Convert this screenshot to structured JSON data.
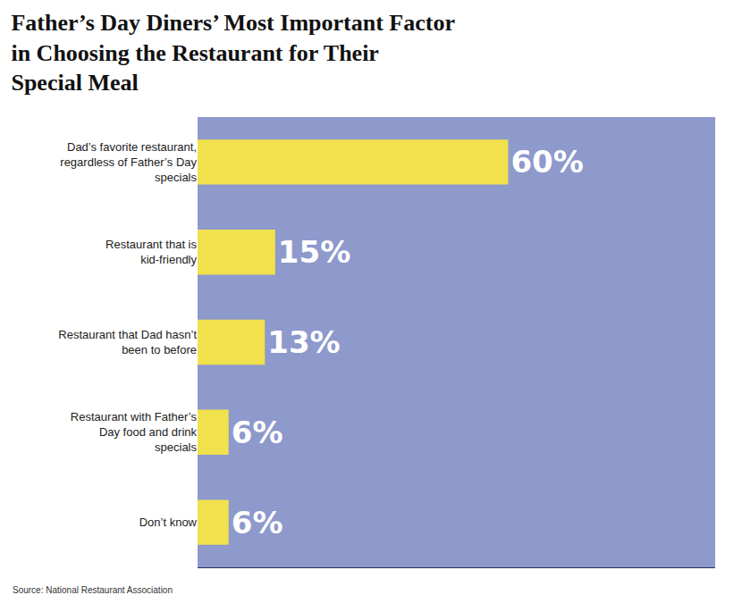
{
  "chart_data": {
    "type": "bar",
    "title": "Father’s Day Diners’ Most Important Factor in Choosing the Restaurant for Their Special Meal",
    "categories": [
      "Dad’s favorite restaurant, regardless of Father’s Day specials",
      "Restaurant that is kid-friendly",
      "Restaurant that Dad hasn’t been to before",
      "Restaurant with Father’s Day food and drink specials",
      "Don’t know"
    ],
    "values": [
      60,
      15,
      13,
      6,
      6
    ],
    "value_labels": [
      "60%",
      "15%",
      "13%",
      "6%",
      "6%"
    ],
    "color": "#f1e14c",
    "orientation": "horizontal",
    "data_labels": true,
    "tick_labels": "y",
    "grid": false,
    "xlim": [
      0,
      100
    ],
    "annotations": [
      "Source: National Restaurant Association"
    ]
  }
}
